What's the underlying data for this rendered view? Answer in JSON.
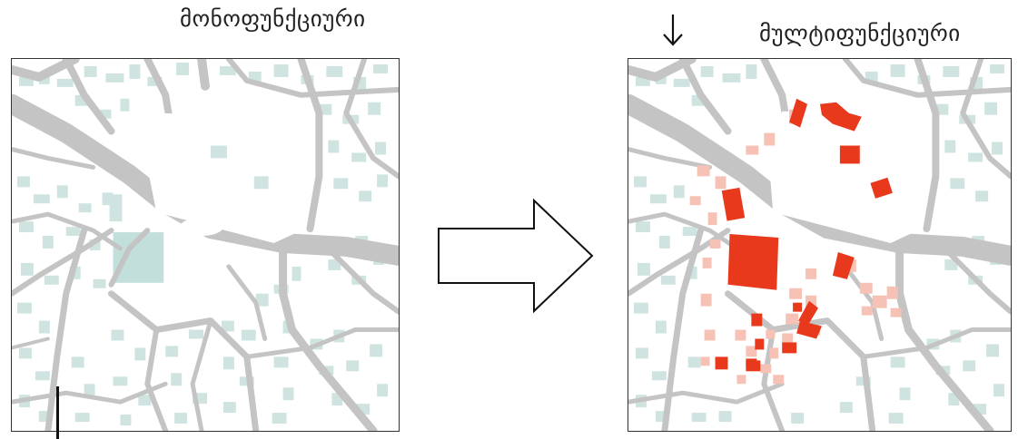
{
  "left_panel": {
    "title": "მონოფუნქციური"
  },
  "right_panel": {
    "title": "მულტიფუნქციური"
  },
  "colors": {
    "streets": "#c4c4c4",
    "buildings": "#cfe4e0",
    "civic_building": "#c2dfdc",
    "highlight_primary": "#e8391d",
    "highlight_secondary": "#f6c2b6"
  },
  "icons": {
    "transition": "right-arrow-icon",
    "pointer": "down-arrow-icon"
  }
}
